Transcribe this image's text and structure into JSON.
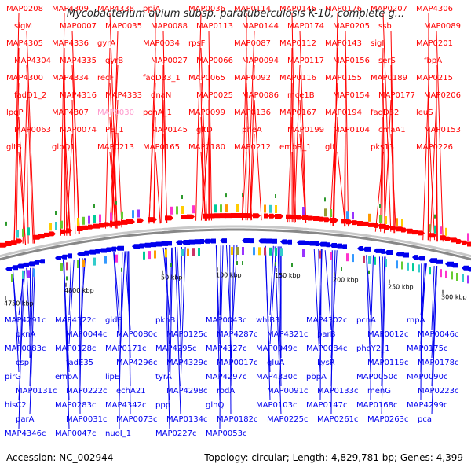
{
  "header": {
    "title": "Mycobacterium avium subsp. paratuberculosis K-10, complete g..."
  },
  "footer": {
    "accession": "Accession: NC_002944",
    "info": "Topology: circular; Length: 4,829,781 bp; Genes: 4,399"
  },
  "colors": {
    "plus_strand": "#ff0000",
    "minus_strand": "#0000ee",
    "highlight": "#ff99cc",
    "backbone": "#888888",
    "tick_green": "#2e9a2e"
  },
  "ticks": [
    "4750 kbp",
    "4800 kbp",
    "50 kbp",
    "100 kbp",
    "150 kbp",
    "200 kbp",
    "250 kbp",
    "300 kbp"
  ],
  "plus_labels": [
    "MAP0208",
    "MAP4309",
    "MAP4338",
    "ppiA",
    "MAP0036",
    "MAP0114",
    "MAP0146",
    "MAP0176",
    "MAP0207",
    "MAP4306",
    "sigM",
    "MAP0007",
    "MAP0035",
    "MAP0088",
    "MAP0113",
    "MAP0144",
    "MAP0174",
    "MAP0205",
    "ssb",
    "MAP0089",
    "MAP4305",
    "MAP4336",
    "gyrA",
    "MAP0034",
    "rpsF",
    "MAP0087",
    "MAP0112",
    "MAP0143",
    "sigI",
    "MAP0201",
    "MAP4304",
    "MAP4335",
    "gyrB",
    "MAP0027",
    "MAP0066",
    "MAP0094",
    "MAP0117",
    "MAP0156",
    "serS",
    "fbpA",
    "MAP4300",
    "MAP4334",
    "recF",
    "fadD33_1",
    "MAP0065",
    "MAP0092",
    "MAP0116",
    "MAP0155",
    "MAP0189",
    "MAP0215",
    "fadD1_2",
    "MAP4316",
    "MAP4333",
    "dnaN",
    "MAP0025",
    "MAP0086",
    "mce1B",
    "MAP0154",
    "MAP0177",
    "MAP0206",
    "lpqP",
    "MAP4307",
    "MAP0030",
    "ponA_1",
    "MAP0099",
    "MAP0136",
    "MAP0167",
    "MAP0194",
    "fadD32",
    "leuS",
    "MAP0063",
    "MAP0074",
    "PE_1",
    "MAP0145",
    "gltD",
    "pheA",
    "MAP0199",
    "MAP0104",
    "cmaA1",
    "MAP0153",
    "gltB",
    "glpQ1",
    "MAP0213",
    "MAP0165",
    "MAP0180",
    "MAP0212",
    "embR_1",
    "glf",
    "pks13",
    "MAP0226"
  ],
  "minus_labels": [
    "MAP4291c",
    "MAP4322c",
    "gidB",
    "pknB",
    "MAP0043c",
    "whiB3",
    "MAP4302c",
    "pcnA",
    "rnpA",
    "pknA",
    "MAP0044c",
    "MAP0080c",
    "MAP0125c",
    "MAP4287c",
    "MAP4321c",
    "parB",
    "MAP0012c",
    "MAP0046c",
    "MAP0083c",
    "MAP0128c",
    "MAP0171c",
    "MAP4295c",
    "MAP4327c",
    "MAP0049c",
    "MAP0084c",
    "phoY2_1",
    "MAP0175c",
    "csp",
    "fadE35",
    "MAP4296c",
    "MAP4329c",
    "MAP0017c",
    "gluA",
    "LysR",
    "MAP0119c",
    "MAP0178c",
    "pirG",
    "embA",
    "lipE",
    "tyrA",
    "MAP4297c",
    "MAP4330c",
    "pbpA",
    "MAP0050c",
    "MAP0090c",
    "MAP0131c",
    "MAP0222c",
    "echA21",
    "MAP4298c",
    "rodA",
    "MAP0091c",
    "MAP0133c",
    "menG",
    "MAP0223c",
    "hisC2",
    "MAP0283c",
    "MAP4342c",
    "ppp",
    "glnQ",
    "MAP0103c",
    "MAP0147c",
    "MAP0168c",
    "MAP4299c",
    "parA",
    "MAP0031c",
    "MAP0073c",
    "MAP0134c",
    "MAP0182c",
    "MAP0225c",
    "MAP0261c",
    "MAP0263c",
    "pca",
    "MAP4346c",
    "MAP0047c",
    "nuoI_1",
    "MAP0227c",
    "MAP0053c"
  ]
}
